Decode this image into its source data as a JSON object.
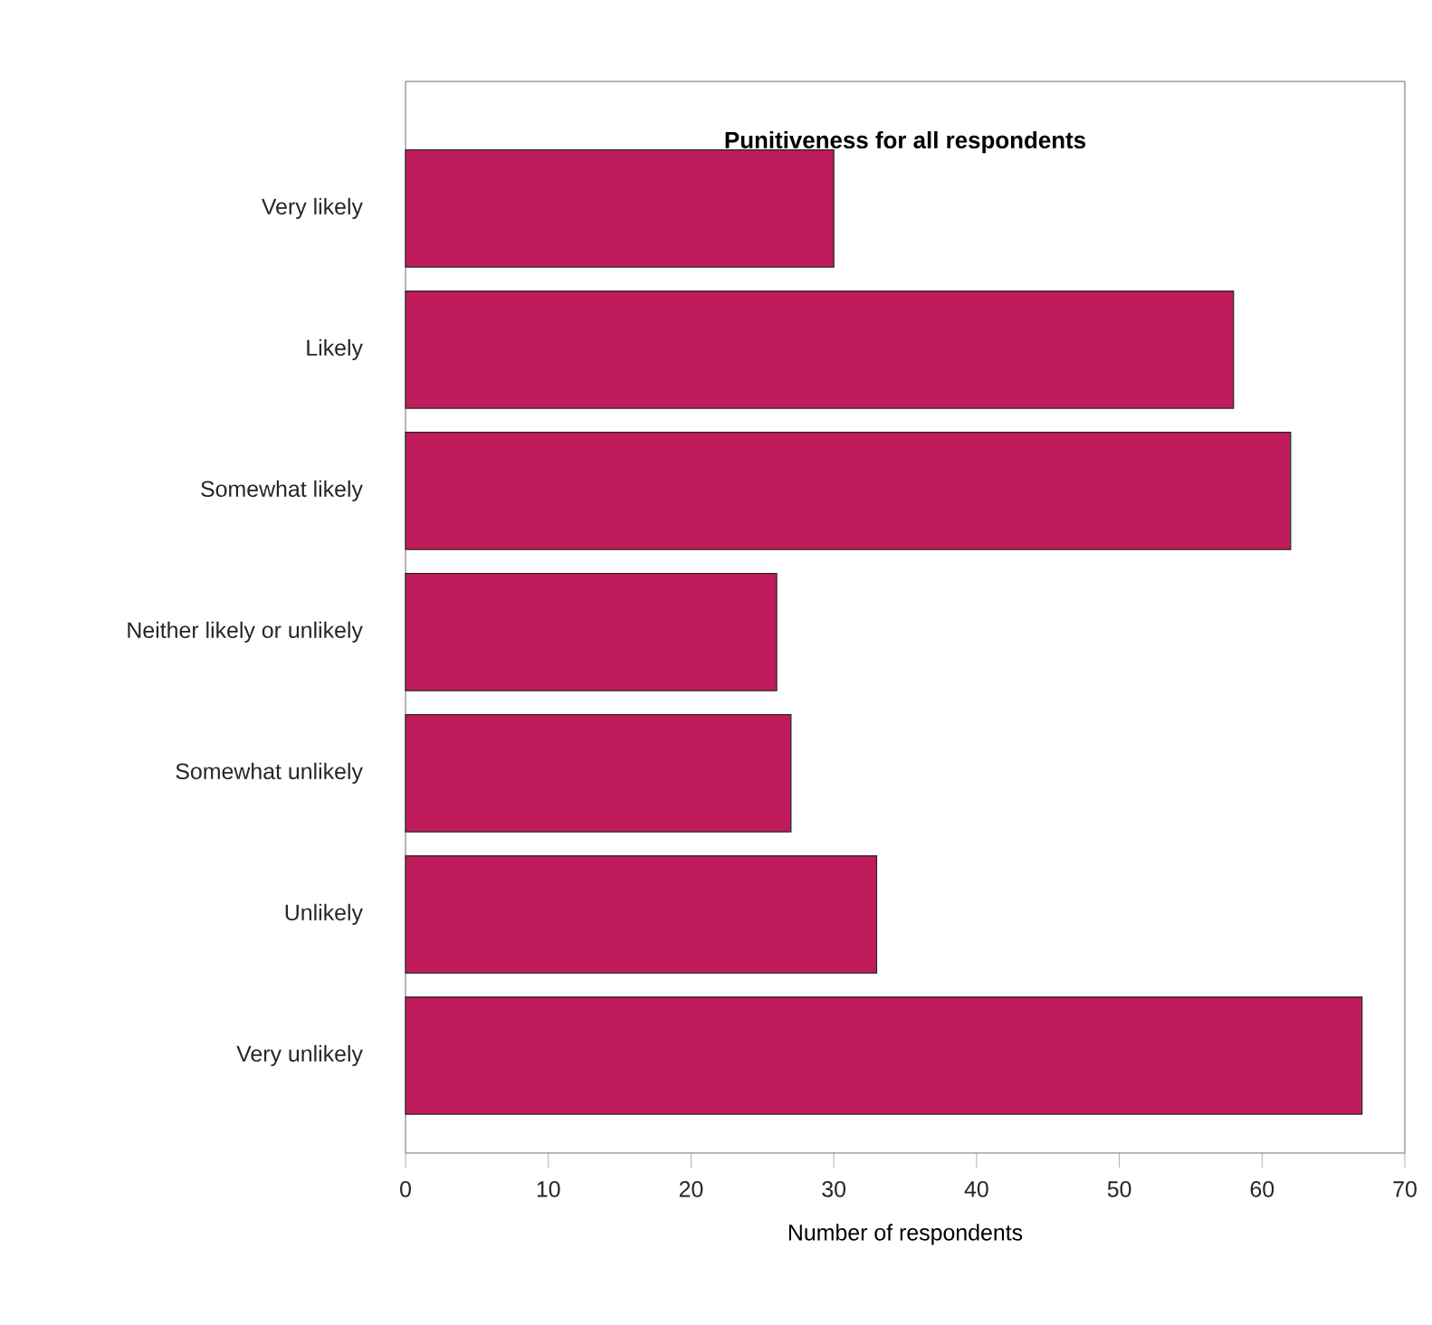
{
  "chart_data": {
    "type": "bar",
    "orientation": "horizontal",
    "title": "Punitiveness for all respondents",
    "xlabel": "Number of respondents",
    "categories": [
      "Very likely",
      "Likely",
      "Somewhat likely",
      "Neither likely or unlikely",
      "Somewhat unlikely",
      "Unlikely",
      "Very unlikely"
    ],
    "values": [
      30,
      58,
      62,
      26,
      27,
      33,
      67
    ],
    "color": "#c01c5c",
    "xlim": [
      0,
      70
    ],
    "xticks": [
      0,
      10,
      20,
      30,
      40,
      50,
      60,
      70
    ],
    "grid": false
  }
}
